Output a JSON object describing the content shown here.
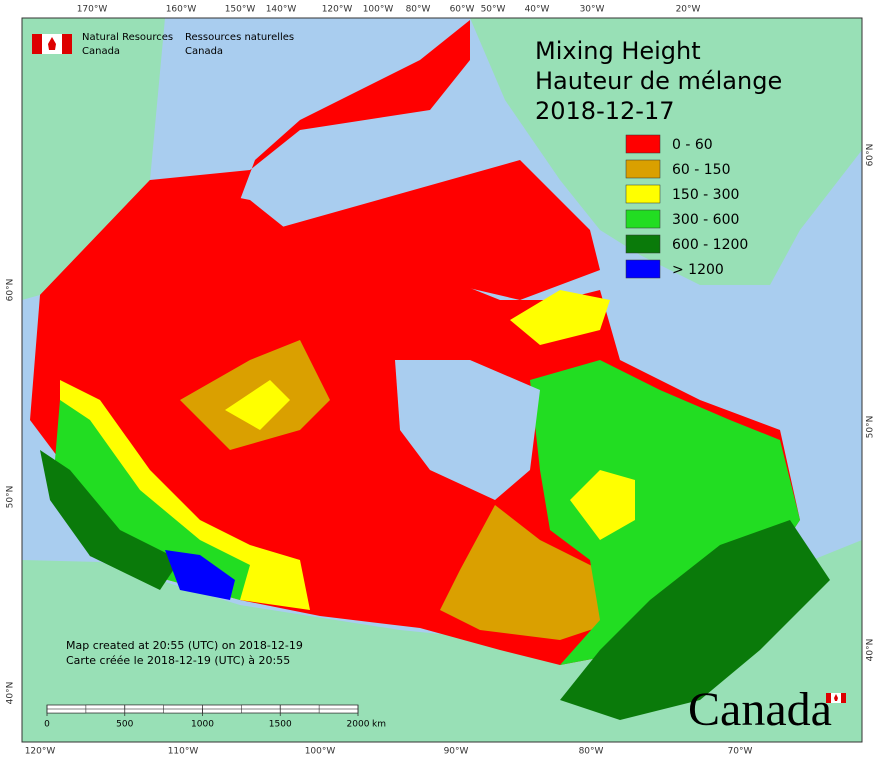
{
  "title": [
    "Mixing Height",
    "Hauteur de mélange",
    "2018-12-17"
  ],
  "agency": {
    "en": [
      "Natural Resources",
      "Canada"
    ],
    "fr": [
      "Ressources naturelles",
      "Canada"
    ]
  },
  "legend": [
    {
      "label": "0 - 60",
      "color": "#ff0000"
    },
    {
      "label": "60 - 150",
      "color": "#daa000"
    },
    {
      "label": "150 - 300",
      "color": "#ffff00"
    },
    {
      "label": "300 - 600",
      "color": "#22dd22"
    },
    {
      "label": "600 - 1200",
      "color": "#0a7a0a"
    },
    {
      "label": "> 1200",
      "color": "#0000ff"
    }
  ],
  "notes": [
    "Map created at 20:55 (UTC) on 2018-12-19",
    "Carte créée le 2018-12-19 (UTC) à 20:55"
  ],
  "scale_bar": {
    "ticks": [
      0,
      500,
      1000,
      1500,
      2000
    ],
    "unit": "km"
  },
  "top_longitudes": [
    "170°W",
    "160°W",
    "150°W",
    "140°W",
    "120°W",
    "100°W",
    "80°W",
    "60°W",
    "50°W",
    "40°W",
    "30°W",
    "20°W"
  ],
  "bottom_longitudes": [
    "120°W",
    "110°W",
    "100°W",
    "90°W",
    "80°W",
    "70°W"
  ],
  "left_latitudes": [
    "60°N",
    "50°N",
    "40°N"
  ],
  "right_latitudes": [
    "60°N",
    "50°N",
    "40°N"
  ],
  "wordmark": "Canada"
}
